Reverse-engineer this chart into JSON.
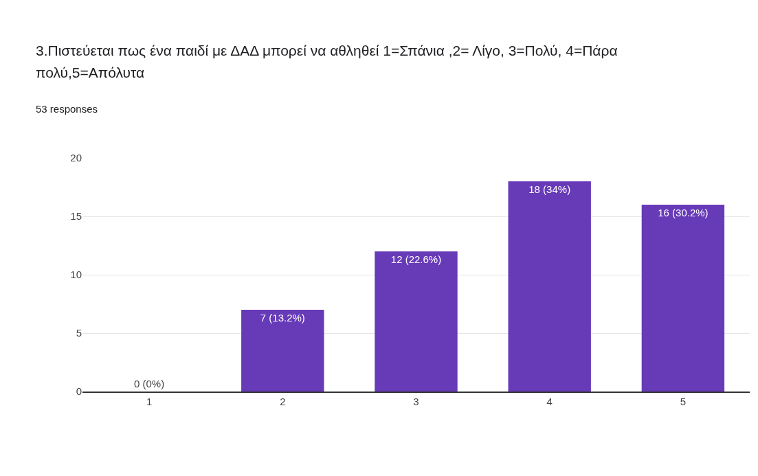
{
  "chart_data": {
    "type": "bar",
    "title": "3.Πιστεύεται πως ένα παιδί με ΔΑΔ μπορεί να αθληθεί 1=Σπάνια ,2= Λίγο, 3=Πολύ, 4=Πάρα πολύ,5=Απόλυτα",
    "subtitle": "53 responses",
    "categories": [
      "1",
      "2",
      "3",
      "4",
      "5"
    ],
    "values": [
      0,
      7,
      12,
      18,
      16
    ],
    "value_labels": [
      "0 (0%)",
      "7 (13.2%)",
      "12 (22.6%)",
      "18 (34%)",
      "16 (30.2%)"
    ],
    "color": "#673ab7",
    "ylim": [
      0,
      20
    ],
    "yticks": [
      0,
      5,
      10,
      15,
      20
    ],
    "grid": "y"
  }
}
